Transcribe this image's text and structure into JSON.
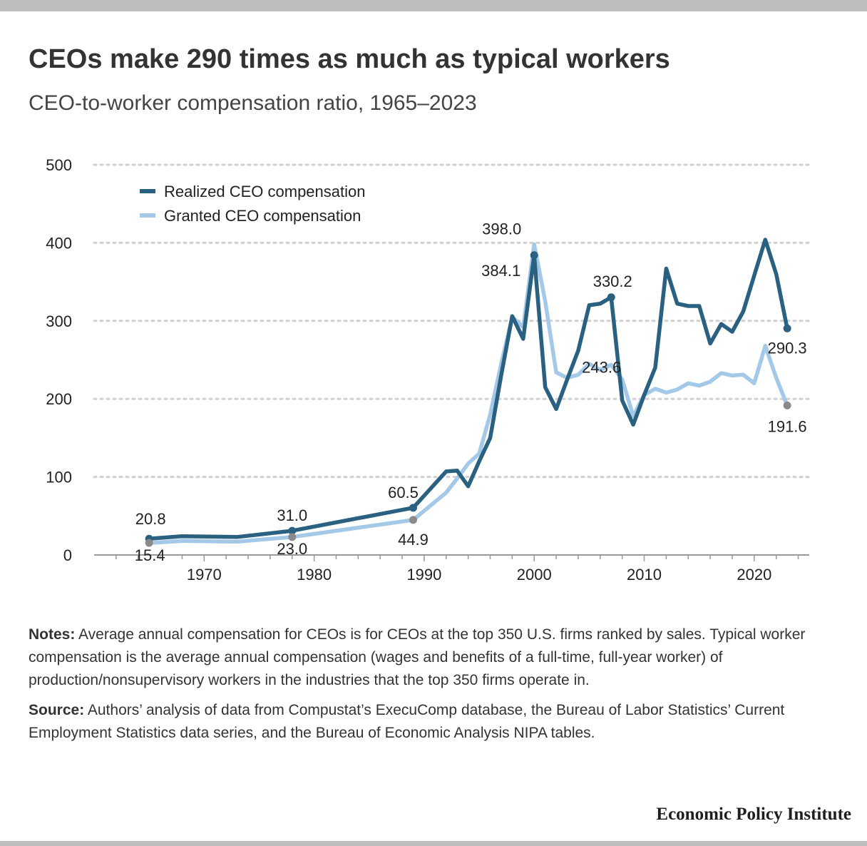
{
  "header": {
    "title": "CEOs make 290 times as much as typical workers",
    "subtitle": "CEO-to-worker compensation ratio, 1965–2023"
  },
  "chart_data": {
    "type": "line",
    "title": "CEOs make 290 times as much as typical workers",
    "subtitle": "CEO-to-worker compensation ratio, 1965–2023",
    "xlabel": "",
    "ylabel": "",
    "xlim": [
      1960,
      2025
    ],
    "ylim": [
      0,
      500
    ],
    "x_ticks": [
      1970,
      1980,
      1990,
      2000,
      2010,
      2020
    ],
    "y_ticks": [
      0,
      100,
      200,
      300,
      400,
      500
    ],
    "grid": "horizontal dotted",
    "legend_position": "top-left",
    "series": [
      {
        "name": "Realized CEO compensation",
        "color": "#2a6080",
        "x": [
          1965,
          1968,
          1973,
          1978,
          1989,
          1992,
          1993,
          1994,
          1995,
          1996,
          1997,
          1998,
          1999,
          2000,
          2001,
          2002,
          2003,
          2004,
          2005,
          2006,
          2007,
          2008,
          2009,
          2010,
          2011,
          2012,
          2013,
          2014,
          2015,
          2016,
          2017,
          2018,
          2019,
          2020,
          2021,
          2022,
          2023
        ],
        "y": [
          20.8,
          24,
          23,
          31.0,
          60.5,
          107,
          108,
          88,
          120,
          150,
          230,
          306,
          277,
          384.1,
          215,
          187,
          225,
          262,
          320,
          322,
          330.2,
          198,
          167,
          205,
          240,
          367,
          322,
          319,
          319,
          271,
          296,
          286,
          312,
          358,
          404,
          360,
          290.3
        ]
      },
      {
        "name": "Granted CEO compensation",
        "color": "#a4c9e8",
        "x": [
          1965,
          1968,
          1973,
          1978,
          1989,
          1992,
          1993,
          1994,
          1995,
          1996,
          1997,
          1998,
          1999,
          2000,
          2001,
          2002,
          2003,
          2004,
          2005,
          2006,
          2007,
          2008,
          2009,
          2010,
          2011,
          2012,
          2013,
          2014,
          2015,
          2016,
          2017,
          2018,
          2019,
          2020,
          2021,
          2022,
          2023
        ],
        "y": [
          15.4,
          18,
          17,
          23.0,
          44.9,
          80,
          98,
          117,
          130,
          180,
          245,
          305,
          292,
          398.0,
          325,
          234,
          227,
          231,
          245,
          237,
          243.6,
          225,
          178,
          205,
          213,
          208,
          212,
          220,
          217,
          222,
          233,
          230,
          231,
          220,
          268,
          227,
          191.6
        ]
      }
    ],
    "annotations": [
      {
        "text": "20.8",
        "x": 1965,
        "y": 20.8,
        "series": "Realized CEO compensation"
      },
      {
        "text": "31.0",
        "x": 1978,
        "y": 31.0,
        "series": "Realized CEO compensation"
      },
      {
        "text": "60.5",
        "x": 1989,
        "y": 60.5,
        "series": "Realized CEO compensation"
      },
      {
        "text": "384.1",
        "x": 2000,
        "y": 384.1,
        "series": "Realized CEO compensation"
      },
      {
        "text": "330.2",
        "x": 2007,
        "y": 330.2,
        "series": "Realized CEO compensation"
      },
      {
        "text": "290.3",
        "x": 2023,
        "y": 290.3,
        "series": "Realized CEO compensation"
      },
      {
        "text": "15.4",
        "x": 1965,
        "y": 15.4,
        "series": "Granted CEO compensation"
      },
      {
        "text": "23.0",
        "x": 1978,
        "y": 23.0,
        "series": "Granted CEO compensation"
      },
      {
        "text": "44.9",
        "x": 1989,
        "y": 44.9,
        "series": "Granted CEO compensation"
      },
      {
        "text": "398.0",
        "x": 2000,
        "y": 398.0,
        "series": "Granted CEO compensation"
      },
      {
        "text": "243.6",
        "x": 2007,
        "y": 243.6,
        "series": "Granted CEO compensation"
      },
      {
        "text": "191.6",
        "x": 2023,
        "y": 191.6,
        "series": "Granted CEO compensation"
      }
    ]
  },
  "notes": {
    "notes_label": "Notes:",
    "notes_text": "Average annual compensation for CEOs is for CEOs at the top 350 U.S. firms ranked by sales. Typical worker compensation is the average annual compensation (wages and benefits of a full-time, full-year worker) of production/nonsupervisory workers in the industries that the top 350 firms operate in.",
    "source_label": "Source:",
    "source_text": "Authors’ analysis of data from Compustat’s ExecuComp database, the Bureau of Labor Statistics’ Current Employment Statistics data series, and the Bureau of Economic Analysis NIPA tables."
  },
  "footer": {
    "publisher": "Economic Policy Institute"
  }
}
